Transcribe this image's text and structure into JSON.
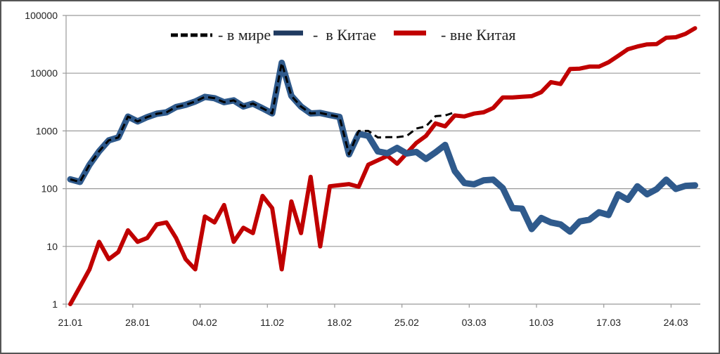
{
  "chart_data": {
    "type": "line",
    "title": "",
    "xlabel": "",
    "ylabel": "",
    "yscale": "log",
    "ylim": [
      1,
      100000
    ],
    "grid": true,
    "legend_position": "top-center",
    "y_ticks": [
      "100000",
      "10000",
      "1000",
      "100",
      "10",
      "1"
    ],
    "x_ticks": [
      "21.01",
      "28.01",
      "04.02",
      "11.02",
      "18.02",
      "25.02",
      "03.03",
      "10.03",
      "17.03",
      "24.03"
    ],
    "x": [
      "21.01",
      "22.01",
      "23.01",
      "24.01",
      "25.01",
      "26.01",
      "27.01",
      "28.01",
      "29.01",
      "30.01",
      "31.01",
      "01.02",
      "02.02",
      "03.02",
      "04.02",
      "05.02",
      "06.02",
      "07.02",
      "08.02",
      "09.02",
      "10.02",
      "11.02",
      "12.02",
      "13.02",
      "14.02",
      "15.02",
      "16.02",
      "17.02",
      "18.02",
      "19.02",
      "20.02",
      "21.02",
      "22.02",
      "23.02",
      "24.02",
      "25.02",
      "26.02",
      "27.02",
      "28.02",
      "29.02",
      "01.03",
      "02.03",
      "03.03",
      "04.03",
      "05.03",
      "06.03",
      "07.03",
      "08.03",
      "09.03",
      "10.03",
      "11.03",
      "12.03",
      "13.03",
      "14.03",
      "15.03",
      "16.03",
      "17.03",
      "18.03",
      "19.03",
      "20.03",
      "21.03",
      "22.03",
      "23.03",
      "24.03",
      "25.03",
      "26.03"
    ],
    "series": [
      {
        "name": "- в мире",
        "color": "#000000",
        "style": "dashed",
        "values": [
          145,
          131,
          259,
          444,
          688,
          770,
          1771,
          1459,
          1737,
          1982,
          2102,
          2590,
          2829,
          3235,
          3886,
          3694,
          3143,
          3385,
          2652,
          2973,
          2467,
          2015,
          15152,
          4050,
          2641,
          2009,
          2048,
          1886,
          1749,
          394,
          1000,
          1000,
          770,
          780,
          780,
          820,
          1100,
          1200,
          1800,
          1850,
          2100,
          null,
          null,
          null,
          null,
          null,
          null,
          null,
          null,
          null,
          null,
          null,
          null,
          null,
          null,
          null,
          null,
          null,
          null,
          null,
          null,
          null,
          null,
          null,
          null,
          null
        ]
      },
      {
        "name": "- в Китае",
        "color": "#2f5a8c",
        "style": "solid",
        "values": [
          145,
          131,
          259,
          444,
          688,
          770,
          1771,
          1459,
          1737,
          1982,
          2102,
          2590,
          2829,
          3235,
          3886,
          3694,
          3143,
          3385,
          2652,
          2973,
          2467,
          2015,
          15152,
          4050,
          2641,
          2009,
          2048,
          1886,
          1749,
          394,
          889,
          823,
          441,
          410,
          508,
          406,
          433,
          327,
          427,
          573,
          202,
          125,
          119,
          139,
          143,
          102,
          46,
          45,
          20,
          31,
          26,
          24,
          18,
          27,
          29,
          39,
          35,
          80,
          64,
          110,
          80,
          98,
          143,
          99,
          112,
          114
        ]
      },
      {
        "name": "- вне Китая",
        "color": "#c00000",
        "style": "solid",
        "values": [
          1,
          2,
          4,
          12,
          6,
          8,
          19,
          12,
          14,
          24,
          26,
          14,
          6,
          4,
          33,
          26,
          52,
          12,
          21,
          17,
          75,
          46,
          4,
          60,
          17,
          160,
          10,
          110,
          115,
          120,
          108,
          260,
          310,
          370,
          270,
          410,
          620,
          820,
          1350,
          1200,
          1850,
          1780,
          2000,
          2100,
          2500,
          3800,
          3800,
          3900,
          4000,
          4700,
          7000,
          6500,
          11800,
          12000,
          13000,
          13000,
          15500,
          20000,
          26000,
          29000,
          31500,
          32000,
          41000,
          42000,
          48000,
          60000
        ]
      }
    ]
  },
  "legend": {
    "items": [
      {
        "label": "- в мире",
        "color": "#000000",
        "style": "dashed"
      },
      {
        "label": "-  в Китае",
        "color": "#1f3a60",
        "style": "solid"
      },
      {
        "label": "- вне Китая",
        "color": "#c00000",
        "style": "solid"
      }
    ]
  }
}
